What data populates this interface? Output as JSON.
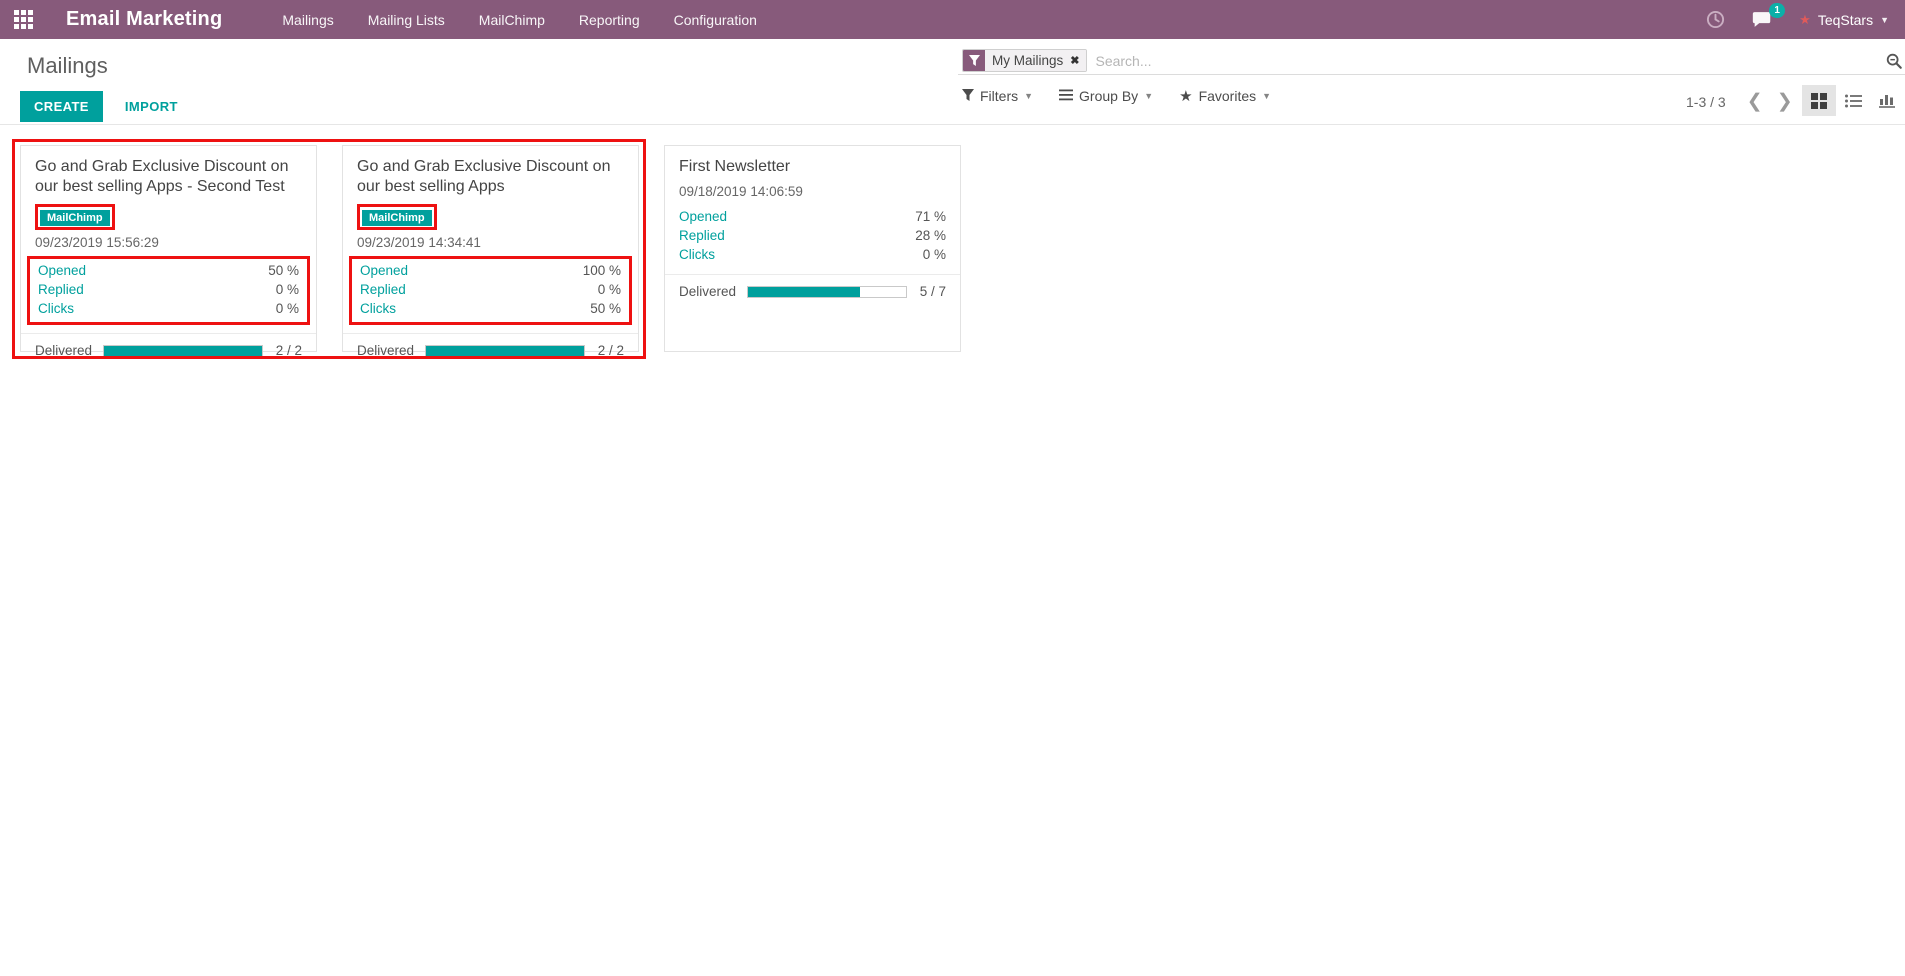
{
  "navbar": {
    "app_title": "Email Marketing",
    "menu_items": [
      "Mailings",
      "Mailing Lists",
      "MailChimp",
      "Reporting",
      "Configuration"
    ],
    "message_badge_count": "1",
    "user_name": "TeqStars"
  },
  "control_panel": {
    "breadcrumb_title": "Mailings",
    "create_label": "CREATE",
    "import_label": "IMPORT",
    "search": {
      "facet_label": "My Mailings",
      "placeholder": "Search..."
    },
    "filters_label": "Filters",
    "group_by_label": "Group By",
    "favorites_label": "Favorites",
    "pager_range": "1-3 / 3"
  },
  "icons": {
    "apps_grid": "3x3-grid",
    "activity_clock": "clock",
    "messages_bubble": "speech-bubble",
    "user_avatar": "star",
    "facet_filter": "funnel",
    "facet_remove": "x",
    "search_magnifier": "magnifier",
    "filters": "funnel",
    "group_by": "bars",
    "favorites": "star",
    "pager_prev": "chevron-left",
    "pager_next": "chevron-right",
    "view_kanban": "grid",
    "view_list": "list",
    "view_graph": "bar-chart"
  },
  "colors": {
    "navbar_purple": "#875A7B",
    "accent_teal": "#00A09D",
    "annotation_red": "#EE1111"
  },
  "kanban": {
    "cards": [
      {
        "title": "Go and Grab Exclusive Discount on our best selling Apps - Second Test",
        "badge": "MailChimp",
        "date": "09/23/2019 15:56:29",
        "stats": [
          {
            "label": "Opened",
            "value": "50 %"
          },
          {
            "label": "Replied",
            "value": "0 %"
          },
          {
            "label": "Clicks",
            "value": "0 %"
          }
        ],
        "delivered_label": "Delivered",
        "delivered_value": "2 / 2",
        "delivered_pct": 100,
        "annotated": true
      },
      {
        "title": "Go and Grab Exclusive Discount on our best selling Apps",
        "badge": "MailChimp",
        "date": "09/23/2019 14:34:41",
        "stats": [
          {
            "label": "Opened",
            "value": "100 %"
          },
          {
            "label": "Replied",
            "value": "0 %"
          },
          {
            "label": "Clicks",
            "value": "50 %"
          }
        ],
        "delivered_label": "Delivered",
        "delivered_value": "2 / 2",
        "delivered_pct": 100,
        "annotated": true
      },
      {
        "title": "First Newsletter",
        "badge": null,
        "date": "09/18/2019 14:06:59",
        "stats": [
          {
            "label": "Opened",
            "value": "71 %"
          },
          {
            "label": "Replied",
            "value": "28 %"
          },
          {
            "label": "Clicks",
            "value": "0 %"
          }
        ],
        "delivered_label": "Delivered",
        "delivered_value": "5 / 7",
        "delivered_pct": 71,
        "annotated": false
      }
    ]
  }
}
